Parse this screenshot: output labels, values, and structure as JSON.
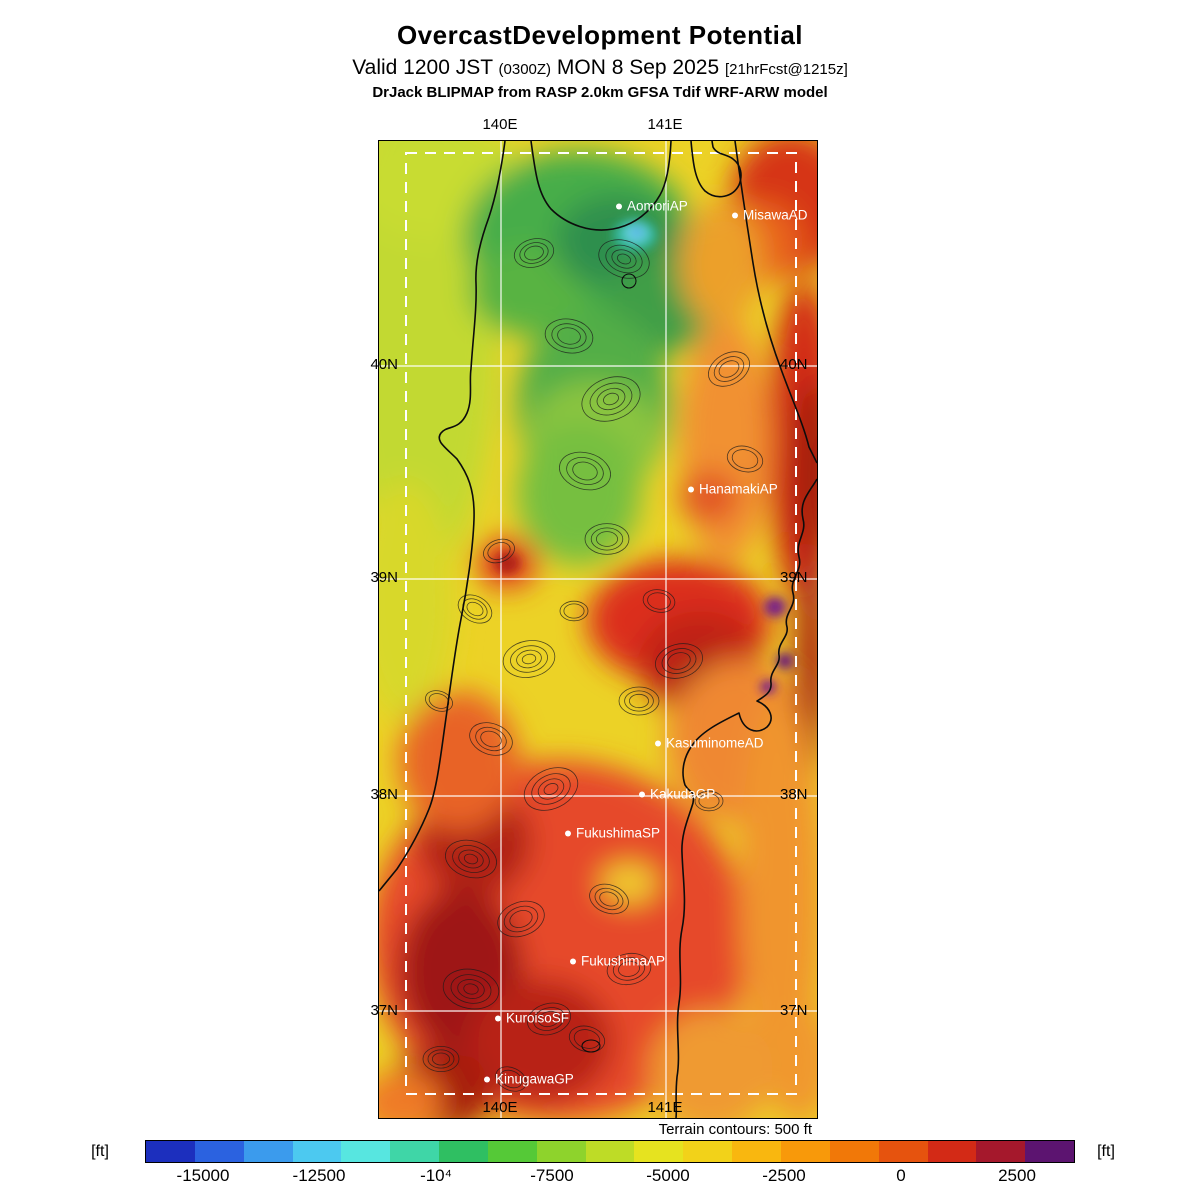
{
  "header": {
    "title": "OvercastDevelopment Potential",
    "valid_prefix": "Valid 1200 JST",
    "valid_zulu": "(0300Z)",
    "valid_date": "MON 8 Sep 2025",
    "forecast_tag": "[21hrFcst@1215z]",
    "model_line": "DrJack BLIPMAP from RASP 2.0km GFSA Tdif WRF-ARW model"
  },
  "map": {
    "lon_top": [
      "140E",
      "141E"
    ],
    "lon_bottom": [
      "140E",
      "141E"
    ],
    "lat_left": [
      "40N",
      "39N",
      "38N",
      "37N"
    ],
    "lat_right": [
      "40N",
      "39N",
      "38N",
      "37N"
    ],
    "stations": [
      {
        "label": "AomoriAP"
      },
      {
        "label": "MisawaAD"
      },
      {
        "label": "HanamakiAP"
      },
      {
        "label": "KasuminomeAD"
      },
      {
        "label": "KakudaGP"
      },
      {
        "label": "FukushimaSP"
      },
      {
        "label": "FukushimaAP"
      },
      {
        "label": "KuroisoSF"
      },
      {
        "label": "KinugawaGP"
      }
    ]
  },
  "colorbar": {
    "note": "Terrain contours: 500 ft",
    "unit_left": "[ft]",
    "unit_right": "[ft]",
    "ticks": [
      "-15000",
      "-12500",
      "-10⁴",
      "-7500",
      "-5000",
      "-2500",
      "0",
      "2500"
    ],
    "colors": [
      "#1c2fbe",
      "#2b62e0",
      "#3b9bed",
      "#4cc9f0",
      "#57e6e0",
      "#3fd6a7",
      "#2fbf62",
      "#55c937",
      "#8ed32c",
      "#bedc26",
      "#e6e31f",
      "#f2d219",
      "#f9b70f",
      "#f8990a",
      "#f17808",
      "#e6530e",
      "#d32a16",
      "#a5182c",
      "#5c1470"
    ]
  }
}
